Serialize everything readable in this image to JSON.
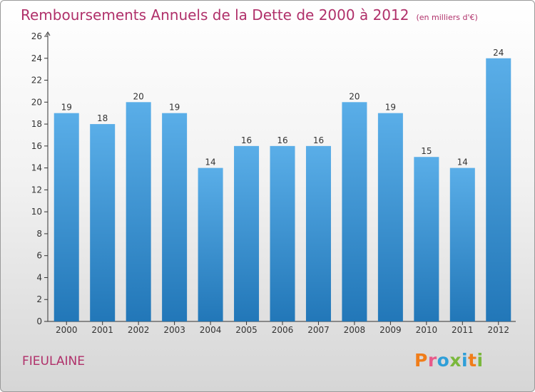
{
  "title": "Remboursements Annuels de la Dette de 2000 à 2012",
  "unit_note": "(en milliers d'€)",
  "place": "FIEULAINE",
  "logo": "Proxiti",
  "colors": {
    "title": "#b0306a",
    "bar_top": "#5aaee8",
    "bar_bottom": "#2277b8",
    "logo_letters": [
      "#f07d1a",
      "#e85a8a",
      "#2f9fd8",
      "#7ab83c",
      "#2f9fd8",
      "#f07d1a",
      "#7ab83c"
    ]
  },
  "chart_data": {
    "type": "bar",
    "categories": [
      "2000",
      "2001",
      "2002",
      "2003",
      "2004",
      "2005",
      "2006",
      "2007",
      "2008",
      "2009",
      "2010",
      "2011",
      "2012"
    ],
    "values": [
      19,
      18,
      20,
      19,
      14,
      16,
      16,
      16,
      20,
      19,
      15,
      14,
      24
    ],
    "yticks": [
      0,
      2,
      4,
      6,
      8,
      10,
      12,
      14,
      16,
      18,
      20,
      22,
      24,
      26
    ],
    "ylim": [
      0,
      26
    ],
    "grid": false,
    "legend": "none"
  }
}
